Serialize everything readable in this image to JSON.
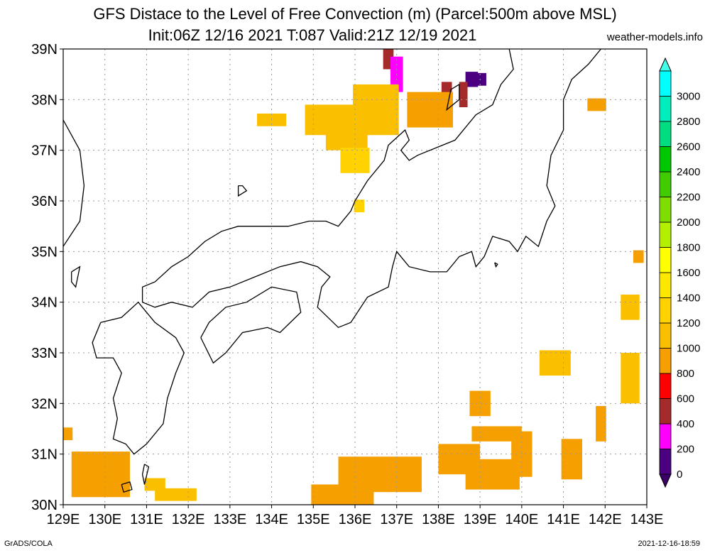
{
  "header": {
    "title_line1": "GFS Distace to the Level of Free Convection (m) (Parcel:500m above MSL)",
    "title_line2": "Init:06Z 12/16 2021 T:087 Valid:21Z 12/19 2021",
    "site": "weather-models.info"
  },
  "footer": {
    "left": "GrADS/COLA",
    "right": "2021-12-16-18:59"
  },
  "map": {
    "lon_labels": [
      "129E",
      "130E",
      "131E",
      "132E",
      "133E",
      "134E",
      "135E",
      "136E",
      "137E",
      "138E",
      "139E",
      "140E",
      "141E",
      "142E",
      "143E"
    ],
    "lat_labels": [
      "30N",
      "31N",
      "32N",
      "33N",
      "34N",
      "35N",
      "36N",
      "37N",
      "38N",
      "39N"
    ],
    "lon_range": [
      129,
      143
    ],
    "lat_range": [
      30,
      39
    ],
    "grid": true,
    "coastline_color": "#000000"
  },
  "colorbar": {
    "levels": [
      "0",
      "200",
      "400",
      "600",
      "800",
      "1000",
      "1200",
      "1400",
      "1600",
      "1800",
      "2000",
      "2200",
      "2400",
      "2600",
      "2800",
      "3000"
    ],
    "colors": [
      "#4b0082",
      "#ff00ff",
      "#a52a2a",
      "#ff0000",
      "#f5a000",
      "#fac000",
      "#ffd200",
      "#ffe800",
      "#ffff00",
      "#b4ee00",
      "#80dd00",
      "#40cc00",
      "#00c800",
      "#00dd80",
      "#00eebb",
      "#00ffff"
    ],
    "under_color": "#3a0066",
    "over_color": "#40ffe8"
  },
  "field_cells": [
    {
      "lon": 136.8,
      "lat": 38.9,
      "w": 0.25,
      "h": 0.6,
      "v": 500
    },
    {
      "lon": 137.0,
      "lat": 38.5,
      "w": 0.3,
      "h": 0.7,
      "v": 300
    },
    {
      "lon": 138.2,
      "lat": 38.2,
      "w": 0.25,
      "h": 0.3,
      "v": 500
    },
    {
      "lon": 138.8,
      "lat": 38.4,
      "w": 0.3,
      "h": 0.3,
      "v": 100
    },
    {
      "lon": 139.0,
      "lat": 38.4,
      "w": 0.3,
      "h": 0.25,
      "v": 10
    },
    {
      "lon": 138.6,
      "lat": 38.1,
      "w": 0.2,
      "h": 0.5,
      "v": 500
    },
    {
      "lon": 137.8,
      "lat": 37.8,
      "w": 1.1,
      "h": 0.7,
      "v": 900
    },
    {
      "lon": 136.5,
      "lat": 37.8,
      "w": 1.1,
      "h": 1.0,
      "v": 1100
    },
    {
      "lon": 135.4,
      "lat": 37.6,
      "w": 1.2,
      "h": 0.6,
      "v": 1150
    },
    {
      "lon": 134.0,
      "lat": 37.6,
      "w": 0.7,
      "h": 0.25,
      "v": 1100
    },
    {
      "lon": 135.8,
      "lat": 37.2,
      "w": 1.0,
      "h": 0.4,
      "v": 1150
    },
    {
      "lon": 136.0,
      "lat": 36.8,
      "w": 0.7,
      "h": 0.5,
      "v": 1200
    },
    {
      "lon": 136.1,
      "lat": 35.9,
      "w": 0.25,
      "h": 0.25,
      "v": 1300
    },
    {
      "lon": 141.8,
      "lat": 37.9,
      "w": 0.45,
      "h": 0.25,
      "v": 950
    },
    {
      "lon": 142.8,
      "lat": 34.9,
      "w": 0.25,
      "h": 0.25,
      "v": 950
    },
    {
      "lon": 142.6,
      "lat": 33.9,
      "w": 0.45,
      "h": 0.5,
      "v": 1000
    },
    {
      "lon": 140.8,
      "lat": 32.8,
      "w": 0.75,
      "h": 0.5,
      "v": 1000
    },
    {
      "lon": 142.6,
      "lat": 32.5,
      "w": 0.45,
      "h": 1.0,
      "v": 1050
    },
    {
      "lon": 141.9,
      "lat": 31.6,
      "w": 0.25,
      "h": 0.7,
      "v": 950
    },
    {
      "lon": 141.2,
      "lat": 30.9,
      "w": 0.5,
      "h": 0.8,
      "v": 900
    },
    {
      "lon": 139.0,
      "lat": 32.0,
      "w": 0.5,
      "h": 0.5,
      "v": 900
    },
    {
      "lon": 138.5,
      "lat": 30.9,
      "w": 1.0,
      "h": 0.6,
      "v": 900
    },
    {
      "lon": 139.4,
      "lat": 31.4,
      "w": 1.2,
      "h": 0.3,
      "v": 900
    },
    {
      "lon": 140.0,
      "lat": 31.0,
      "w": 0.5,
      "h": 0.9,
      "v": 900
    },
    {
      "lon": 136.6,
      "lat": 30.6,
      "w": 2.0,
      "h": 0.7,
      "v": 900
    },
    {
      "lon": 135.7,
      "lat": 30.2,
      "w": 1.5,
      "h": 0.4,
      "v": 950
    },
    {
      "lon": 139.3,
      "lat": 30.6,
      "w": 1.3,
      "h": 0.6,
      "v": 900
    },
    {
      "lon": 129.9,
      "lat": 30.6,
      "w": 1.4,
      "h": 0.9,
      "v": 950
    },
    {
      "lon": 129.1,
      "lat": 31.4,
      "w": 0.25,
      "h": 0.25,
      "v": 950
    },
    {
      "lon": 131.7,
      "lat": 30.2,
      "w": 1.0,
      "h": 0.25,
      "v": 1000
    },
    {
      "lon": 131.2,
      "lat": 30.4,
      "w": 0.5,
      "h": 0.25,
      "v": 1000
    }
  ]
}
